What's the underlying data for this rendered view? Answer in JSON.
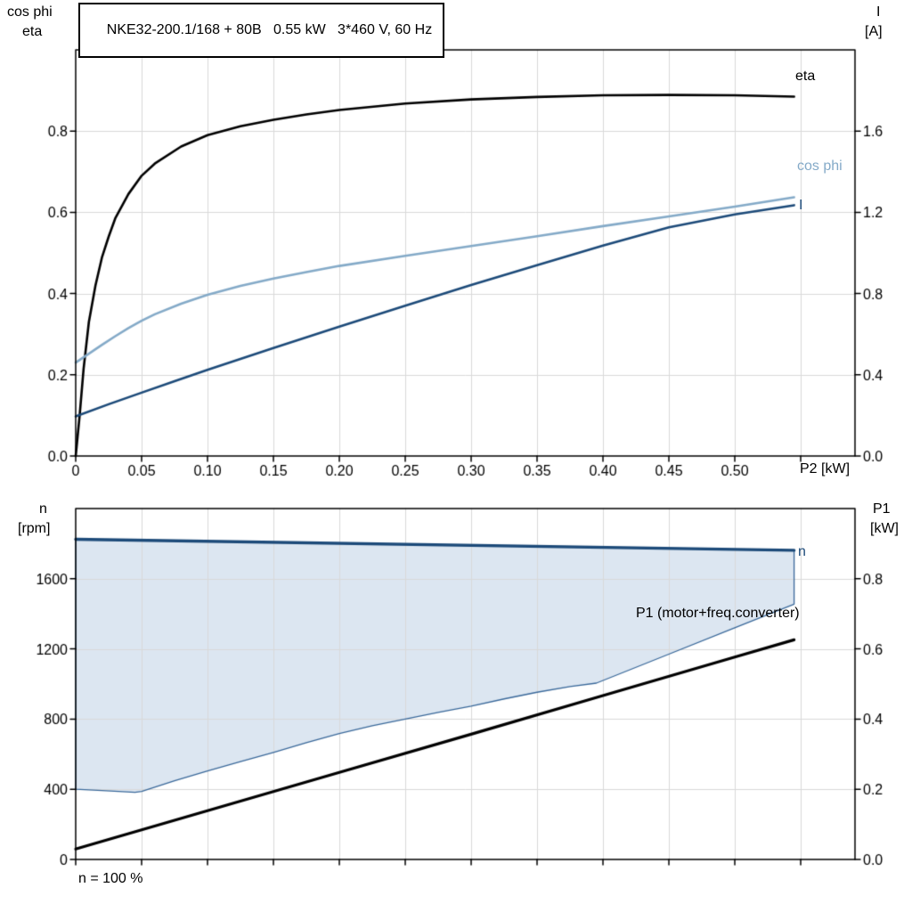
{
  "title": "NKE32-200.1/168 + 80B   0.55 kW   3*460 V, 60 Hz",
  "labels": {
    "top_left_line1": "cos phi",
    "top_left_line2": "eta",
    "top_right_line1": "I",
    "top_right_line2": "[A]",
    "top_x_axis": "P2 [kW]",
    "curve_eta": "eta",
    "curve_cosphi": "cos phi",
    "curve_current": "I",
    "bottom_left_line1": "n",
    "bottom_left_line2": "[rpm]",
    "bottom_right_line1": "P1",
    "bottom_right_line2": "[kW]",
    "curve_n": "n",
    "curve_p1": "P1 (motor+freq.converter)",
    "footnote": "n = 100 %"
  },
  "colors": {
    "black": "#000000",
    "axis": "#000000",
    "grid": "#d9d9d9",
    "current": "#1c4a79",
    "cos_phi": "#84aac8",
    "band_fill": "#dce6f1",
    "band_edge": "#39689a"
  },
  "chart_data": [
    {
      "type": "line",
      "title": "NKE32-200.1/168 + 80B   0.55 kW   3*460 V, 60 Hz",
      "xlabel": "P2 [kW]",
      "ylabel_left": "cos phi / eta",
      "ylabel_right": "I [A]",
      "xlim": [
        0,
        0.5912
      ],
      "ylim_left": [
        0,
        1.0
      ],
      "ylim_right": [
        0,
        2.0
      ],
      "x_ticks": [
        0,
        0.05,
        0.1,
        0.15,
        0.2,
        0.25,
        0.3,
        0.35,
        0.4,
        0.45,
        0.5,
        0.55
      ],
      "x_tick_labels": [
        "0",
        "0.05",
        "0.10",
        "0.15",
        "0.20",
        "0.25",
        "0.30",
        "0.35",
        "0.40",
        "0.45",
        "0.50",
        ""
      ],
      "y_ticks_left": [
        0,
        0.2,
        0.4,
        0.6,
        0.8
      ],
      "y_tick_labels_left": [
        "0.0",
        "0.2",
        "0.4",
        "0.6",
        "0.8"
      ],
      "y_ticks_right": [
        0,
        0.4,
        0.8,
        1.2,
        1.6
      ],
      "y_tick_labels_right": [
        "0.0",
        "0.4",
        "0.8",
        "1.2",
        "1.6"
      ],
      "series": [
        {
          "name": "eta",
          "axis": "left",
          "color": "black",
          "x": [
            0,
            0.003,
            0.006,
            0.01,
            0.015,
            0.02,
            0.025,
            0.03,
            0.04,
            0.05,
            0.06,
            0.08,
            0.1,
            0.125,
            0.15,
            0.175,
            0.2,
            0.25,
            0.3,
            0.35,
            0.4,
            0.45,
            0.5,
            0.545
          ],
          "y": [
            0,
            0.1,
            0.215,
            0.33,
            0.42,
            0.49,
            0.54,
            0.585,
            0.645,
            0.69,
            0.72,
            0.762,
            0.79,
            0.812,
            0.828,
            0.841,
            0.852,
            0.868,
            0.878,
            0.884,
            0.888,
            0.889,
            0.888,
            0.885
          ]
        },
        {
          "name": "cos phi",
          "axis": "left",
          "color": "cos_phi",
          "x": [
            0,
            0.01,
            0.02,
            0.03,
            0.04,
            0.05,
            0.06,
            0.08,
            0.1,
            0.125,
            0.15,
            0.175,
            0.2,
            0.25,
            0.3,
            0.35,
            0.4,
            0.45,
            0.5,
            0.545
          ],
          "y": [
            0.23,
            0.252,
            0.274,
            0.295,
            0.315,
            0.333,
            0.349,
            0.375,
            0.397,
            0.419,
            0.437,
            0.453,
            0.468,
            0.493,
            0.517,
            0.541,
            0.566,
            0.59,
            0.614,
            0.637
          ]
        },
        {
          "name": "I",
          "axis": "right",
          "color": "current",
          "x": [
            0,
            0.025,
            0.05,
            0.075,
            0.1,
            0.15,
            0.2,
            0.25,
            0.3,
            0.35,
            0.4,
            0.45,
            0.5,
            0.545
          ],
          "y": [
            0.195,
            0.255,
            0.312,
            0.368,
            0.424,
            0.532,
            0.637,
            0.74,
            0.842,
            0.94,
            1.036,
            1.126,
            1.19,
            1.235
          ]
        }
      ]
    },
    {
      "type": "line",
      "title": "",
      "xlabel": "",
      "ylabel_left": "n [rpm]",
      "ylabel_right": "P1 [kW]",
      "annotations": [
        "n = 100 %"
      ],
      "xlim": [
        0,
        0.5912
      ],
      "ylim_left": [
        0,
        2000
      ],
      "ylim_right": [
        0,
        1.0
      ],
      "x_ticks": [
        0,
        0.05,
        0.1,
        0.15,
        0.2,
        0.25,
        0.3,
        0.35,
        0.4,
        0.45,
        0.5,
        0.55
      ],
      "x_tick_labels": [
        "",
        "",
        "",
        "",
        "",
        "",
        "",
        "",
        "",
        "",
        "",
        ""
      ],
      "y_ticks_left": [
        0,
        400,
        800,
        1200,
        1600
      ],
      "y_tick_labels_left": [
        "0",
        "400",
        "800",
        "1200",
        "1600"
      ],
      "y_ticks_right": [
        0,
        0.2,
        0.4,
        0.6,
        0.8
      ],
      "y_tick_labels_right": [
        "0.0",
        "0.2",
        "0.4",
        "0.6",
        "0.8"
      ],
      "series": [
        {
          "name": "n",
          "axis": "left",
          "color": "current",
          "x": [
            0,
            0.545
          ],
          "y": [
            1825,
            1762
          ]
        },
        {
          "name": "n min",
          "axis": "left",
          "color": "band_edge",
          "fill_to": "n",
          "fill_color": "band_fill",
          "x": [
            0,
            0.02,
            0.045,
            0.05,
            0.075,
            0.1,
            0.125,
            0.15,
            0.175,
            0.2,
            0.225,
            0.25,
            0.275,
            0.3,
            0.325,
            0.35,
            0.375,
            0.395,
            0.42,
            0.45,
            0.5,
            0.545
          ],
          "y": [
            400,
            393,
            383,
            388,
            448,
            505,
            558,
            610,
            665,
            718,
            762,
            800,
            838,
            874,
            915,
            953,
            985,
            1005,
            1080,
            1170,
            1320,
            1455
          ]
        },
        {
          "name": "P1 (motor+freq.converter)",
          "axis": "right",
          "color": "black",
          "x": [
            0,
            0.1,
            0.2,
            0.3,
            0.4,
            0.5,
            0.545
          ],
          "y": [
            0.03,
            0.139,
            0.248,
            0.357,
            0.467,
            0.577,
            0.626
          ]
        }
      ]
    }
  ]
}
